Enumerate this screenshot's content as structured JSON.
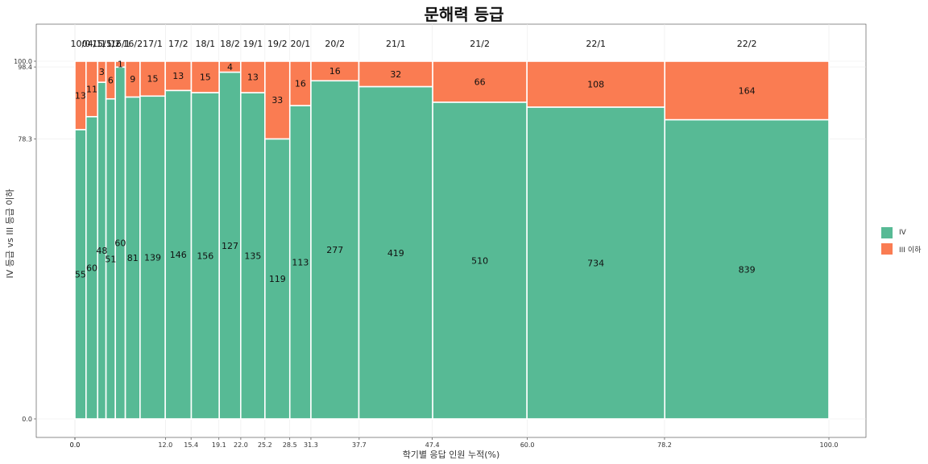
{
  "chart_data": {
    "type": "mosaic",
    "title": "문해력 등급",
    "xlabel": "학기별 응답 인원 누적(%)",
    "ylabel": "IV 등급 vs III 등급 이하",
    "xlim": [
      0,
      100
    ],
    "ylim": [
      0,
      100
    ],
    "x_ticks": [
      "0.0",
      "0.0",
      "12.0",
      "15.4",
      "19.1",
      "22.0",
      "25.2",
      "28.5",
      "31.3",
      "37.7",
      "47.4",
      "60.0",
      "78.2",
      "100.0"
    ],
    "y_ticks": [
      "0.0",
      "78.3",
      "98.4",
      "100.0"
    ],
    "series": [
      {
        "name": "IV",
        "color": "#57BA95"
      },
      {
        "name": "III 이하",
        "color": "#FA7C52"
      }
    ],
    "categories": [
      "10/0",
      "04/1",
      "15/1",
      "15/2",
      "16/1",
      "16/2",
      "17/1",
      "17/2",
      "18/1",
      "18/2",
      "19/1",
      "19/2",
      "20/1",
      "20/2",
      "21/1",
      "21/2",
      "22/1",
      "22/2"
    ],
    "iv": [
      55,
      60,
      48,
      51,
      60,
      81,
      139,
      146,
      156,
      127,
      135,
      119,
      113,
      277,
      419,
      510,
      734,
      839
    ],
    "iii": [
      13,
      11,
      3,
      6,
      1,
      9,
      15,
      13,
      15,
      4,
      13,
      33,
      16,
      16,
      32,
      66,
      108,
      164
    ]
  }
}
